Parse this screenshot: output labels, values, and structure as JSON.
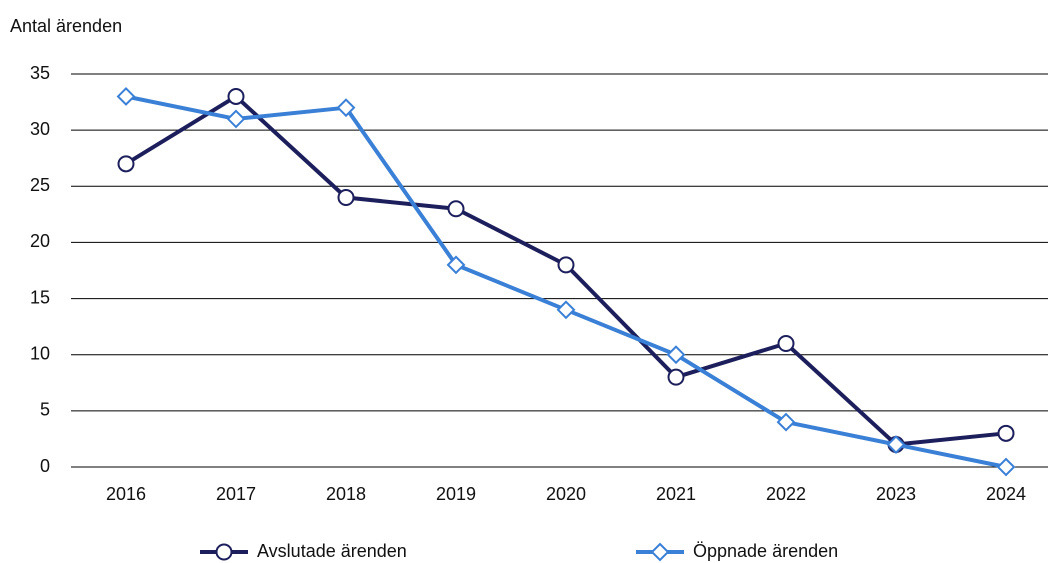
{
  "chart_data": {
    "type": "line",
    "y_label": "Antal ärenden",
    "categories": [
      "2016",
      "2017",
      "2018",
      "2019",
      "2020",
      "2021",
      "2022",
      "2023",
      "2024"
    ],
    "series": [
      {
        "name": "Avslutade ärenden",
        "color": "#1c1f5c",
        "marker": "circle",
        "values": [
          27,
          33,
          24,
          23,
          18,
          8,
          11,
          2,
          3
        ]
      },
      {
        "name": "Öppnade ärenden",
        "color": "#3a80d6",
        "marker": "diamond",
        "values": [
          33,
          31,
          32,
          18,
          14,
          10,
          4,
          2,
          0
        ]
      }
    ],
    "ylim": [
      0,
      35
    ],
    "yticks": [
      0,
      5,
      10,
      15,
      20,
      25,
      30,
      35
    ],
    "grid": true,
    "legend": "bottom"
  }
}
